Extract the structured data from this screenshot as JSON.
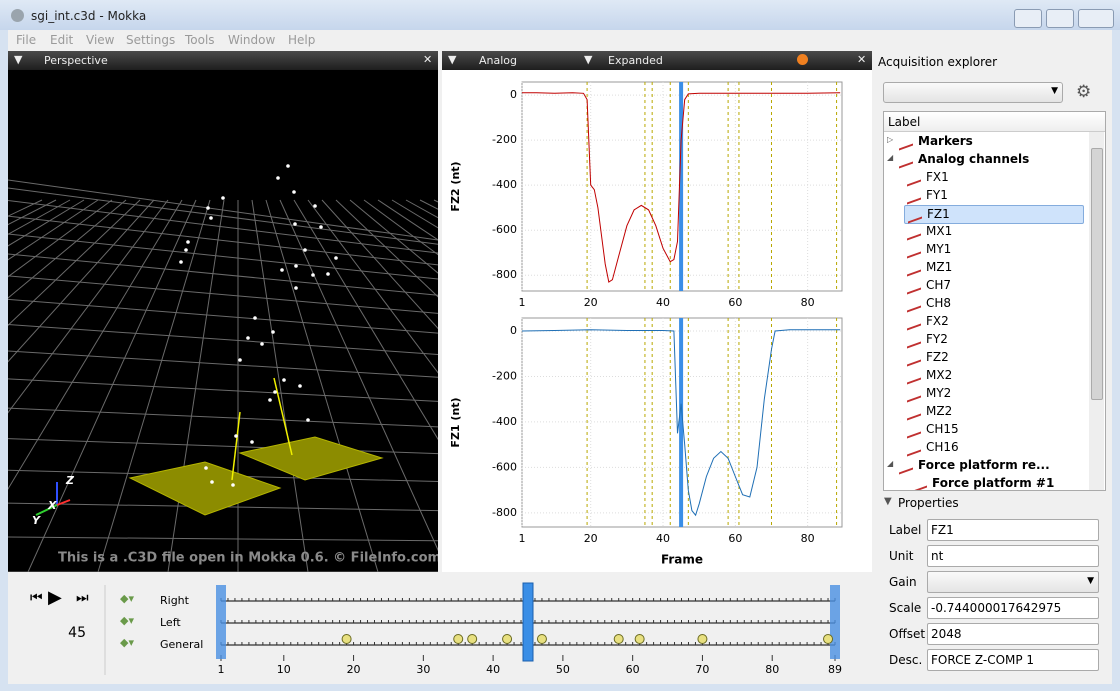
{
  "window": {
    "title": "sgi_int.c3d - Mokka"
  },
  "menu": [
    "File",
    "Edit",
    "View",
    "Settings",
    "Tools",
    "Window",
    "Help"
  ],
  "perspective": {
    "header": "Perspective",
    "watermark": "This is a .C3D file open in Mokka 0.6. © FileInfo.com",
    "axes": [
      "Z",
      "X",
      "Y"
    ]
  },
  "analog": {
    "header": "Analog",
    "mode": "Expanded",
    "x_label": "Frame",
    "charts": [
      {
        "type": "line",
        "y_label": "FZ2 (nt)",
        "color": "#c00000",
        "x": [
          1,
          5,
          10,
          15,
          18,
          19,
          20,
          21,
          22,
          24,
          25,
          26,
          28,
          30,
          32,
          34,
          36,
          38,
          40,
          42,
          43,
          44,
          45,
          46,
          47,
          50,
          60,
          70,
          80,
          89
        ],
        "values": [
          10,
          10,
          8,
          10,
          8,
          -20,
          -400,
          -420,
          -500,
          -750,
          -830,
          -820,
          -700,
          -580,
          -510,
          -490,
          -510,
          -580,
          -680,
          -740,
          -730,
          -650,
          -200,
          -20,
          5,
          8,
          8,
          8,
          8,
          10
        ],
        "xlim": [
          1,
          89.5
        ],
        "xticks": [
          1,
          20,
          40,
          60,
          80
        ],
        "ylim": [
          -870,
          58
        ],
        "yticks": [
          0,
          -200,
          -400,
          -600,
          -800
        ],
        "grid": true
      },
      {
        "type": "line",
        "y_label": "FZ1 (nt)",
        "color": "#1f6fb5",
        "x": [
          1,
          10,
          20,
          30,
          40,
          43,
          44,
          45,
          46,
          47,
          48,
          49,
          50,
          52,
          54,
          56,
          58,
          60,
          62,
          64,
          66,
          68,
          70,
          71,
          75,
          80,
          89
        ],
        "values": [
          0,
          2,
          5,
          2,
          2,
          0,
          -450,
          -320,
          -500,
          -700,
          -790,
          -810,
          -760,
          -640,
          -560,
          -530,
          -560,
          -640,
          -720,
          -730,
          -600,
          -300,
          -80,
          0,
          5,
          5,
          5
        ],
        "xlim": [
          1,
          89.5
        ],
        "xticks": [
          1,
          20,
          40,
          60,
          80
        ],
        "ylim": [
          -862,
          57
        ],
        "yticks": [
          0,
          -200,
          -400,
          -600,
          -800
        ],
        "grid": true
      }
    ]
  },
  "timeline": {
    "frame": 45,
    "rows": [
      "Right",
      "Left",
      "General"
    ],
    "xlim": [
      1,
      89
    ],
    "xticks": [
      1,
      10,
      20,
      30,
      40,
      50,
      60,
      70,
      80,
      89
    ],
    "events": [
      19,
      35,
      37,
      42,
      47,
      58,
      61,
      70,
      88
    ]
  },
  "explorer": {
    "title": "Acquisition explorer",
    "column": "Label",
    "groups": [
      {
        "label": "Markers"
      },
      {
        "label": "Analog channels",
        "children": [
          "FX1",
          "FY1",
          "FZ1",
          "MX1",
          "MY1",
          "MZ1",
          "CH7",
          "CH8",
          "FX2",
          "FY2",
          "FZ2",
          "MX2",
          "MY2",
          "MZ2",
          "CH15",
          "CH16"
        ]
      },
      {
        "label": "Force platform re...",
        "children": [
          "Force platform #1"
        ]
      }
    ]
  },
  "properties": {
    "title": "Properties",
    "fields": [
      {
        "label": "Label",
        "value": "FZ1"
      },
      {
        "label": "Unit",
        "value": "nt"
      },
      {
        "label": "Gain"
      },
      {
        "label": "Scale",
        "value": -0.744000017642975
      },
      {
        "label": "Offset",
        "value": 2048
      },
      {
        "label": "Desc.",
        "value": "FORCE Z-COMP 1"
      }
    ]
  }
}
